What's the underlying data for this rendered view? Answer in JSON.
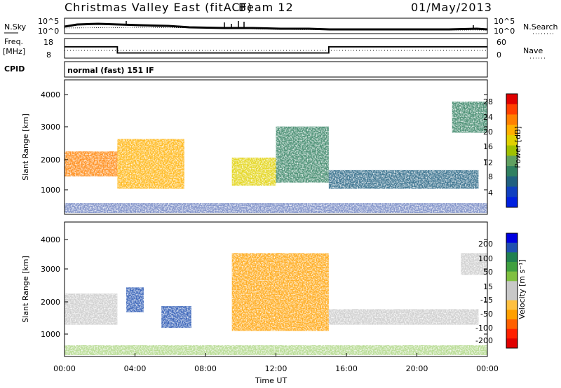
{
  "header": {
    "title": "Christmas Valley East (fitACF)",
    "beam": "Beam 12",
    "date": "01/May/2013"
  },
  "panels": {
    "nsky": {
      "label": "N.Sky",
      "ticks_left": [
        "10^5",
        "10^0"
      ],
      "ticks_right": [
        "10^5",
        "10^0"
      ],
      "right_label": "N.Search"
    },
    "freq": {
      "label_line1": "Freq.",
      "label_line2": "[MHz]",
      "ticks_left": [
        "18",
        "8"
      ],
      "ticks_right": [
        "60",
        "0"
      ],
      "right_label": "Nave"
    },
    "cpid": {
      "label": "CPID",
      "value": "normal (fast) 151 IF"
    }
  },
  "power_panel": {
    "ylabel": "Slant Range [km]",
    "yticks": [
      "4000",
      "3000",
      "2000",
      "1000"
    ],
    "colorbar_label": "Power [dB]",
    "colorbar_ticks": [
      "28",
      "24",
      "20",
      "16",
      "12",
      "8",
      "4"
    ],
    "colorbar_colors": [
      "#e00000",
      "#ff4000",
      "#ff8000",
      "#ffb000",
      "#e0d000",
      "#a0c000",
      "#60a060",
      "#308060",
      "#206080",
      "#1040c0",
      "#0020e0"
    ]
  },
  "velocity_panel": {
    "ylabel": "Slant Range [km]",
    "yticks": [
      "4000",
      "3000",
      "2000",
      "1000"
    ],
    "colorbar_label": "Velocity [m s⁻¹]",
    "colorbar_ticks": [
      "200",
      "100",
      "50",
      "15",
      "-15",
      "-50",
      "-100",
      "-200"
    ],
    "colorbar_colors": [
      "#0000e0",
      "#2050b0",
      "#208050",
      "#40a040",
      "#80c040",
      "#c8c8c8",
      "#c8c8c8",
      "#ffc040",
      "#ffa000",
      "#ff6000",
      "#ff2000",
      "#e00000"
    ]
  },
  "xaxis": {
    "label": "Time UT",
    "ticks": [
      "00:00",
      "04:00",
      "08:00",
      "12:00",
      "16:00",
      "20:00",
      "00:00"
    ]
  },
  "chart_data": {
    "type": "heatmap",
    "title": "Christmas Valley East (fitACF)",
    "subtitle": "Beam 12",
    "date": "01/May/2013",
    "xlabel": "Time UT",
    "ylabel": "Slant Range [km]",
    "xlim_hours": [
      0,
      24
    ],
    "ylim_km": [
      180,
      4500
    ],
    "frequency_mhz_segments": [
      {
        "start_h": 0,
        "end_h": 3,
        "value": 14
      },
      {
        "start_h": 3,
        "end_h": 15,
        "value": 10
      },
      {
        "start_h": 15,
        "end_h": 24,
        "value": 14
      }
    ],
    "power_echo_regions": [
      {
        "t0": 0,
        "t1": 3,
        "r0": 1400,
        "r1": 2200,
        "level_db": 24
      },
      {
        "t0": 3,
        "t1": 6.8,
        "r0": 1000,
        "r1": 2600,
        "level_db": 20
      },
      {
        "t0": 9.5,
        "t1": 12,
        "r0": 1100,
        "r1": 2000,
        "level_db": 18
      },
      {
        "t0": 12,
        "t1": 15,
        "r0": 1200,
        "r1": 3000,
        "level_db": 10
      },
      {
        "t0": 15,
        "t1": 23.5,
        "r0": 1000,
        "r1": 1600,
        "level_db": 6
      },
      {
        "t0": 22,
        "t1": 24,
        "r0": 2800,
        "r1": 3800,
        "level_db": 8
      }
    ],
    "velocity_echo_regions": [
      {
        "t0": 0,
        "t1": 3,
        "r0": 1200,
        "r1": 2200,
        "v": 0
      },
      {
        "t0": 3.5,
        "t1": 4.5,
        "r0": 1600,
        "r1": 2400,
        "v": 200
      },
      {
        "t0": 5.5,
        "t1": 7.2,
        "r0": 1100,
        "r1": 1800,
        "v": 200
      },
      {
        "t0": 9.5,
        "t1": 15,
        "r0": 1000,
        "r1": 3500,
        "v": -100
      },
      {
        "t0": 15,
        "t1": 23.5,
        "r0": 1200,
        "r1": 1700,
        "v": 0
      },
      {
        "t0": 22.5,
        "t1": 24,
        "r0": 2800,
        "r1": 3500,
        "v": 0
      }
    ]
  }
}
